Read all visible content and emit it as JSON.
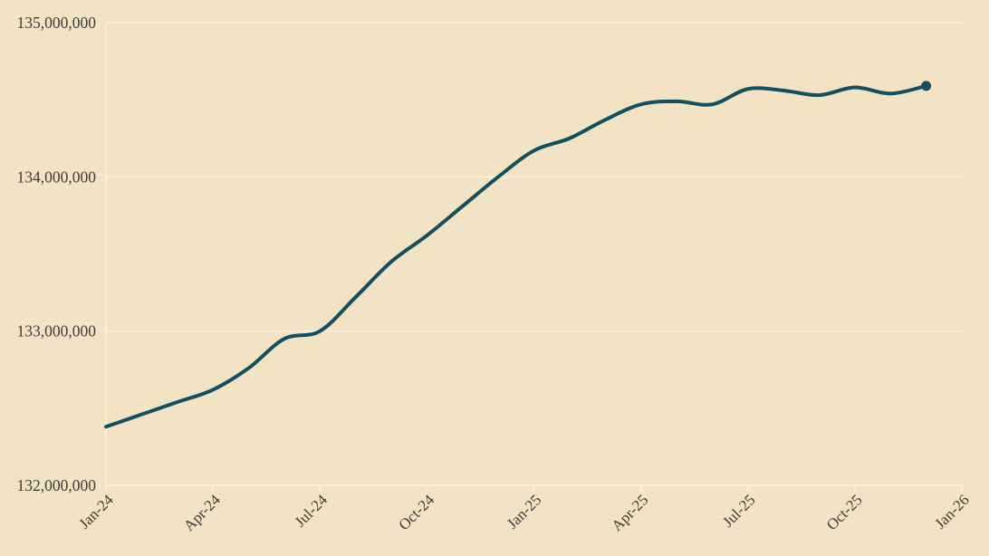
{
  "chart_data": {
    "type": "line",
    "title": "",
    "xlabel": "",
    "ylabel": "",
    "categories": [
      "Jan-24",
      "Feb-24",
      "Mar-24",
      "Apr-24",
      "May-24",
      "Jun-24",
      "Jul-24",
      "Aug-24",
      "Sep-24",
      "Oct-24",
      "Nov-24",
      "Dec-24",
      "Jan-25",
      "Feb-25",
      "Mar-25",
      "Apr-25",
      "May-25",
      "Jun-25",
      "Jul-25",
      "Aug-25",
      "Sep-25",
      "Oct-25",
      "Nov-25",
      "Dec-25"
    ],
    "values": [
      132380000,
      132460000,
      132540000,
      132620000,
      132760000,
      132950000,
      133000000,
      133220000,
      133450000,
      133620000,
      133810000,
      134000000,
      134170000,
      134250000,
      134370000,
      134470000,
      134490000,
      134470000,
      134570000,
      134560000,
      134530000,
      134580000,
      134540000,
      134590000
    ],
    "ylim": [
      132000000,
      135000000
    ],
    "y_ticks": [
      135000000,
      134000000,
      133000000,
      132000000
    ],
    "y_tick_labels": [
      "135,000,000",
      "134,000,000",
      "133,000,000",
      "132,000,000"
    ],
    "x_tick_labels": [
      "Jan-24",
      "Apr-24",
      "Jul-24",
      "Oct-24",
      "Jan-25",
      "Apr-25",
      "Jul-25",
      "Oct-25",
      "Jan-26"
    ],
    "x_tick_month_index": [
      0,
      3,
      6,
      9,
      12,
      15,
      18,
      21,
      24
    ],
    "grid": "horizontal",
    "legend": "none",
    "end_dot_on_last_point": true,
    "colors": {
      "background": "#f3e3c5",
      "line": "#134f60",
      "grid": "#f8f0dd",
      "axis": "#f8f0dd",
      "tick_text": "#403e39",
      "end_dot": "#134f60"
    }
  }
}
